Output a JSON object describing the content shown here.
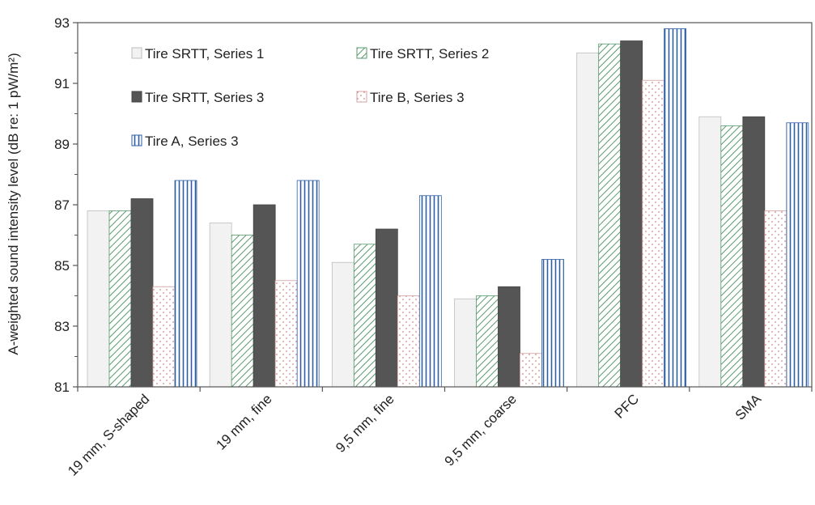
{
  "chart_data": {
    "type": "bar",
    "ylabel": "A-weighted sound intensity level (dB re: 1 pW/m²)",
    "ylim": [
      81,
      93
    ],
    "yticks": [
      "81",
      "83",
      "85",
      "87",
      "89",
      "91",
      "93"
    ],
    "categories": [
      "19 mm, S-shaped",
      "19 mm, fine",
      "9,5 mm, fine",
      "9,5 mm, coarse",
      "PFC",
      "SMA"
    ],
    "series": [
      {
        "name": "Tire SRTT,  Series 1",
        "values": [
          86.8,
          86.4,
          85.1,
          83.9,
          92.0,
          89.9
        ],
        "color": "#f2f2f2",
        "pattern": "solid"
      },
      {
        "name": "Tire SRTT,  Series 2",
        "values": [
          86.8,
          86.0,
          85.7,
          84.0,
          92.3,
          89.6
        ],
        "color": "#5a9a6e",
        "pattern": "diagonal"
      },
      {
        "name": "Tire SRTT,  Series 3",
        "values": [
          87.2,
          87.0,
          86.2,
          84.3,
          92.4,
          89.9
        ],
        "color": "#555555",
        "pattern": "solid"
      },
      {
        "name": "Tire B,  Series 3",
        "values": [
          84.3,
          84.5,
          84.0,
          82.1,
          91.1,
          86.8
        ],
        "color": "#d4807e",
        "pattern": "dots"
      },
      {
        "name": "Tire A,  Series 3",
        "values": [
          87.8,
          87.8,
          87.3,
          85.2,
          92.8,
          89.7
        ],
        "color": "#2e5fa3",
        "pattern": "vertical"
      }
    ],
    "legend_position": "top-left",
    "grid": false
  }
}
